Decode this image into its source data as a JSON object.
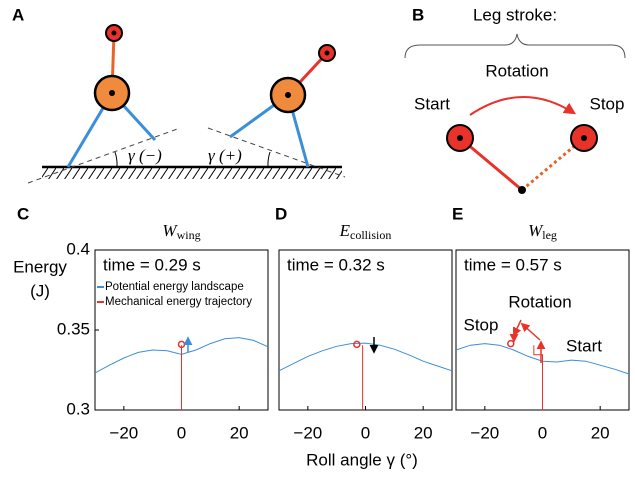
{
  "panel_a": {
    "letter": "A",
    "angle_minus": "γ (−)",
    "angle_plus": "γ (+)"
  },
  "panel_b": {
    "letter": "B",
    "heading": "Leg stroke:",
    "rotation": "Rotation",
    "start": "Start",
    "stop": "Stop"
  },
  "ylabel_lines": [
    "Energy",
    "(J)"
  ],
  "xlabel": "Roll angle γ (°)",
  "chart_data": [
    {
      "type": "line",
      "letter": "C",
      "title": "W",
      "title_sub": "wing",
      "annotation": "time = 0.29 s",
      "xlim": [
        -30,
        30
      ],
      "ylim": [
        0.3,
        0.4
      ],
      "xticks": [
        {
          "value": -20,
          "label": "−20"
        },
        0,
        20
      ],
      "yticks": [
        0.3,
        0.35,
        0.4
      ],
      "series": [
        {
          "name": "Potential energy landscape",
          "color": "#3b8fd9",
          "x": [
            -30,
            -25,
            -20,
            -15,
            -10,
            -5,
            0,
            5,
            10,
            15,
            20,
            25,
            30
          ],
          "values": [
            0.3232,
            0.328,
            0.3325,
            0.336,
            0.3375,
            0.337,
            0.3348,
            0.3375,
            0.3415,
            0.3445,
            0.3452,
            0.3435,
            0.3395
          ]
        },
        {
          "name": "Mechanical energy trajectory",
          "color": "#e8322a",
          "x": [
            0,
            0
          ],
          "values": [
            0.3,
            0.3405
          ]
        }
      ],
      "marker": {
        "x": 0,
        "value": 0.341
      }
    },
    {
      "type": "line",
      "letter": "D",
      "title": "E",
      "title_sub": "collision",
      "annotation": "time = 0.32 s",
      "xlim": [
        -30,
        30
      ],
      "ylim": [
        0.3,
        0.4
      ],
      "xticks": [
        {
          "value": -20,
          "label": "−20"
        },
        0,
        20
      ],
      "series": [
        {
          "color": "#3b8fd9",
          "x": [
            -30,
            -25,
            -20,
            -15,
            -10,
            -5,
            0,
            5,
            10,
            15,
            20,
            25,
            30
          ],
          "values": [
            0.3245,
            0.329,
            0.3335,
            0.337,
            0.3398,
            0.3415,
            0.3418,
            0.3405,
            0.338,
            0.3345,
            0.3305,
            0.3275,
            0.3245
          ]
        },
        {
          "color": "#e8322a",
          "x": [
            -1,
            -1
          ],
          "values": [
            0.3,
            0.3405
          ]
        }
      ],
      "marker": {
        "x": -3,
        "value": 0.341
      }
    },
    {
      "type": "line",
      "letter": "E",
      "title": "W",
      "title_sub": "leg",
      "annotation": "time = 0.57 s",
      "xlim": [
        -30,
        30
      ],
      "ylim": [
        0.3,
        0.4
      ],
      "xticks": [
        {
          "value": -20,
          "label": "−20"
        },
        0,
        20
      ],
      "annotations": [
        "Rotation",
        "Stop",
        "Start"
      ],
      "series": [
        {
          "color": "#3b8fd9",
          "x": [
            -30,
            -25,
            -20,
            -15,
            -10,
            -5,
            0,
            5,
            10,
            15,
            20,
            25,
            30
          ],
          "values": [
            0.3375,
            0.3405,
            0.3415,
            0.3405,
            0.3375,
            0.3335,
            0.3305,
            0.33,
            0.3312,
            0.3305,
            0.328,
            0.3255,
            0.3225
          ]
        },
        {
          "color": "#e8322a",
          "x": [
            0,
            0,
            -3,
            -3
          ],
          "values": [
            0.3,
            0.3345,
            0.3345,
            0.3405
          ]
        }
      ],
      "marker": {
        "x": -11,
        "value": 0.3415
      }
    }
  ]
}
